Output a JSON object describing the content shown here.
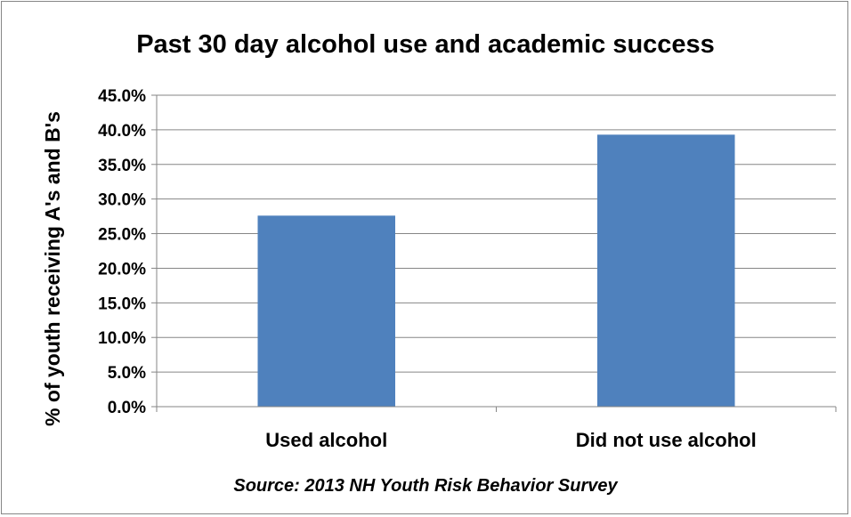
{
  "chart_data": {
    "type": "bar",
    "title": "Past 30 day alcohol use and academic success",
    "ylabel": "% of youth receiving A's and B's",
    "xlabel": "",
    "categories": [
      "Used alcohol",
      "Did not use alcohol"
    ],
    "values": [
      27.6,
      39.3
    ],
    "ylim": [
      0,
      45
    ],
    "yticks": [
      "0.0%",
      "5.0%",
      "10.0%",
      "15.0%",
      "20.0%",
      "25.0%",
      "30.0%",
      "35.0%",
      "40.0%",
      "45.0%"
    ],
    "grid": true,
    "legend": "none",
    "bar_color": "#4F81BD",
    "source": "Source: 2013 NH Youth Risk Behavior Survey"
  }
}
